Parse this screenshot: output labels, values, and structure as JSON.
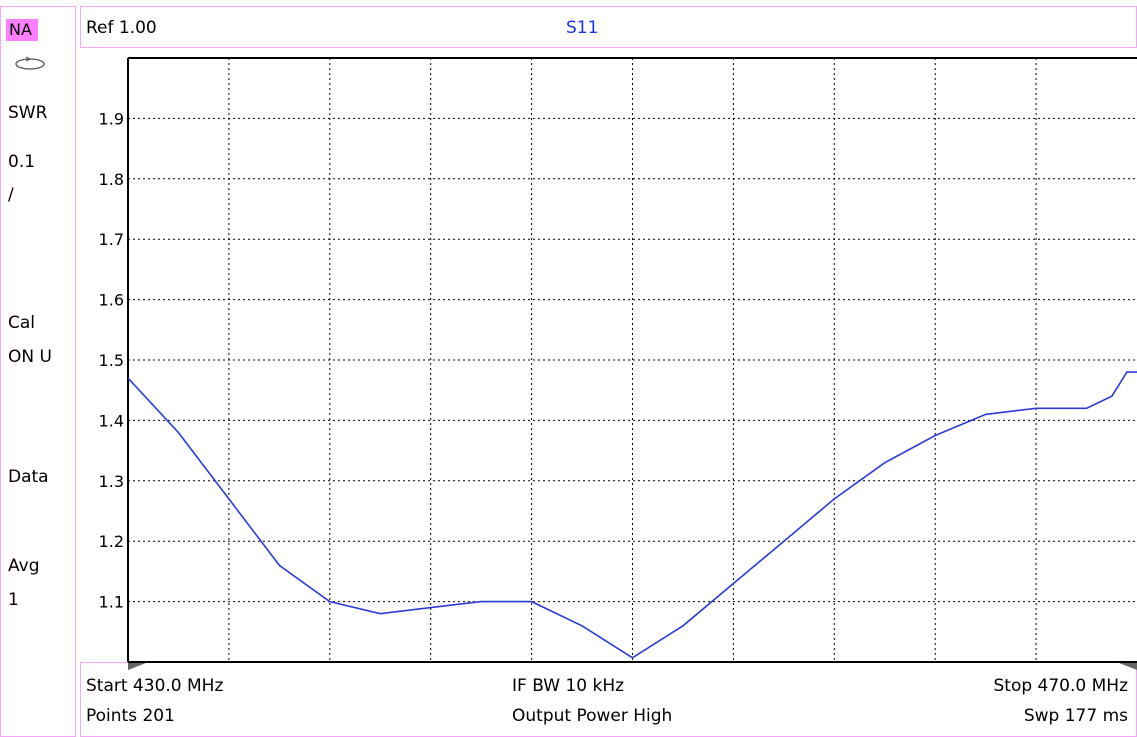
{
  "side_panel": {
    "mode": "NA",
    "format_icon": "circle-arrow-icon",
    "format": "SWR",
    "scale": "0.1",
    "scale_suffix": "/",
    "cal_label": "Cal",
    "cal_value": "ON U",
    "display": "Data",
    "avg_label": "Avg",
    "avg_value": "1"
  },
  "header": {
    "ref": "Ref 1.00",
    "trace": "S11"
  },
  "footer": {
    "start": "Start 430.0 MHz",
    "ifbw": "IF BW 10 kHz",
    "stop": "Stop 470.0 MHz",
    "points": "Points 201",
    "power": "Output Power High",
    "sweep": "Swp 177 ms"
  },
  "colors": {
    "trace": "#2a3bd8",
    "frame": "#f3a6f3",
    "badge": "#ff7fff"
  },
  "chart_data": {
    "type": "line",
    "title": "S11",
    "xlabel": "",
    "ylabel": "",
    "xlim": [
      430.0,
      470.0
    ],
    "ylim": [
      1.0,
      2.0
    ],
    "yticks": [
      "1.1",
      "1.2",
      "1.3",
      "1.4",
      "1.5",
      "1.6",
      "1.7",
      "1.8",
      "1.9"
    ],
    "grid": true,
    "series": [
      {
        "x": [
          430.0,
          432.0,
          434.0,
          436.0,
          438.0,
          440.0,
          442.0,
          444.0,
          446.0,
          448.0,
          450.0,
          452.0,
          454.0,
          456.0,
          458.0,
          460.0,
          462.0,
          464.0,
          466.0,
          467.0,
          468.0,
          469.0,
          469.6,
          470.0
        ],
        "values": [
          1.47,
          1.38,
          1.27,
          1.16,
          1.1,
          1.08,
          1.09,
          1.1,
          1.1,
          1.06,
          1.007,
          1.06,
          1.13,
          1.2,
          1.27,
          1.33,
          1.375,
          1.41,
          1.42,
          1.42,
          1.42,
          1.44,
          1.48,
          1.48
        ]
      }
    ]
  }
}
